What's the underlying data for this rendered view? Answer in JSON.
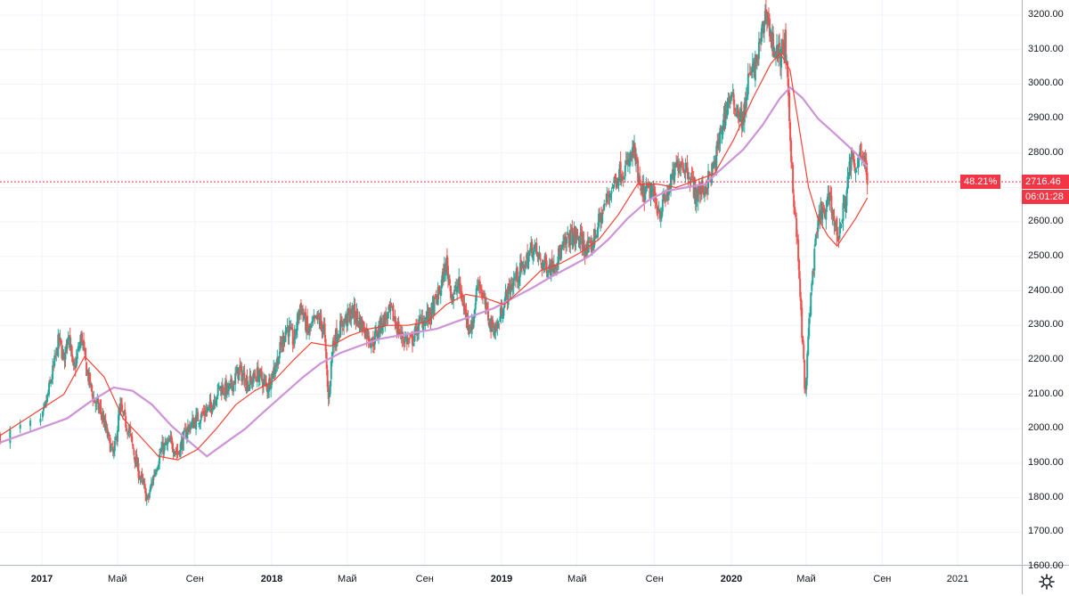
{
  "chart_data": {
    "type": "candlestick",
    "price_axis": {
      "ticks": [
        "3200.00",
        "3100.00",
        "3000.00",
        "2900.00",
        "2800.00",
        "2700.00",
        "2600.00",
        "2500.00",
        "2400.00",
        "2300.00",
        "2200.00",
        "2100.00",
        "2000.00",
        "1900.00",
        "1800.00",
        "1700.00",
        "1600.00"
      ],
      "range": [
        1600,
        3230
      ]
    },
    "time_axis": {
      "labels": [
        "2017",
        "Май",
        "Сен",
        "2018",
        "Май",
        "Сен",
        "2019",
        "Май",
        "Сен",
        "2020",
        "Май",
        "Сен",
        "2021"
      ],
      "bold": [
        true,
        false,
        false,
        true,
        false,
        false,
        true,
        false,
        false,
        true,
        false,
        false,
        false
      ]
    },
    "last_price": "2716.46",
    "percent_badge": "48.21%",
    "countdown": "06:01:28",
    "last_value": 2716.46,
    "close_path": [
      {
        "d": "2016-12-26",
        "v": 1980
      },
      {
        "d": "2017-01-05",
        "v": 2050
      },
      {
        "d": "2017-01-20",
        "v": 2180
      },
      {
        "d": "2017-01-28",
        "v": 2260
      },
      {
        "d": "2017-02-05",
        "v": 2200
      },
      {
        "d": "2017-02-12",
        "v": 2290
      },
      {
        "d": "2017-02-20",
        "v": 2160
      },
      {
        "d": "2017-03-05",
        "v": 2270
      },
      {
        "d": "2017-03-12",
        "v": 2180
      },
      {
        "d": "2017-03-25",
        "v": 2080
      },
      {
        "d": "2017-04-05",
        "v": 2050
      },
      {
        "d": "2017-04-12",
        "v": 2000
      },
      {
        "d": "2017-04-25",
        "v": 1920
      },
      {
        "d": "2017-05-05",
        "v": 2060
      },
      {
        "d": "2017-05-20",
        "v": 1990
      },
      {
        "d": "2017-06-01",
        "v": 1890
      },
      {
        "d": "2017-06-10",
        "v": 1840
      },
      {
        "d": "2017-06-18",
        "v": 1790
      },
      {
        "d": "2017-06-28",
        "v": 1870
      },
      {
        "d": "2017-07-10",
        "v": 1940
      },
      {
        "d": "2017-07-25",
        "v": 1960
      },
      {
        "d": "2017-08-05",
        "v": 1930
      },
      {
        "d": "2017-08-20",
        "v": 2000
      },
      {
        "d": "2017-09-05",
        "v": 2030
      },
      {
        "d": "2017-09-25",
        "v": 2060
      },
      {
        "d": "2017-10-10",
        "v": 2120
      },
      {
        "d": "2017-10-25",
        "v": 2110
      },
      {
        "d": "2017-11-10",
        "v": 2170
      },
      {
        "d": "2017-11-25",
        "v": 2130
      },
      {
        "d": "2017-12-10",
        "v": 2160
      },
      {
        "d": "2017-12-25",
        "v": 2120
      },
      {
        "d": "2018-01-10",
        "v": 2200
      },
      {
        "d": "2018-01-25",
        "v": 2300
      },
      {
        "d": "2018-02-05",
        "v": 2250
      },
      {
        "d": "2018-02-15",
        "v": 2360
      },
      {
        "d": "2018-02-28",
        "v": 2280
      },
      {
        "d": "2018-03-15",
        "v": 2320
      },
      {
        "d": "2018-03-25",
        "v": 2290
      },
      {
        "d": "2018-04-01",
        "v": 2080
      },
      {
        "d": "2018-04-08",
        "v": 2250
      },
      {
        "d": "2018-04-25",
        "v": 2310
      },
      {
        "d": "2018-05-10",
        "v": 2340
      },
      {
        "d": "2018-05-25",
        "v": 2300
      },
      {
        "d": "2018-06-10",
        "v": 2250
      },
      {
        "d": "2018-06-25",
        "v": 2310
      },
      {
        "d": "2018-07-10",
        "v": 2340
      },
      {
        "d": "2018-07-25",
        "v": 2270
      },
      {
        "d": "2018-08-10",
        "v": 2250
      },
      {
        "d": "2018-08-25",
        "v": 2310
      },
      {
        "d": "2018-09-10",
        "v": 2330
      },
      {
        "d": "2018-09-25",
        "v": 2400
      },
      {
        "d": "2018-10-05",
        "v": 2480
      },
      {
        "d": "2018-10-15",
        "v": 2380
      },
      {
        "d": "2018-10-25",
        "v": 2420
      },
      {
        "d": "2018-11-05",
        "v": 2330
      },
      {
        "d": "2018-11-15",
        "v": 2290
      },
      {
        "d": "2018-11-25",
        "v": 2440
      },
      {
        "d": "2018-12-05",
        "v": 2360
      },
      {
        "d": "2018-12-15",
        "v": 2300
      },
      {
        "d": "2018-12-25",
        "v": 2290
      },
      {
        "d": "2019-01-05",
        "v": 2370
      },
      {
        "d": "2019-01-20",
        "v": 2430
      },
      {
        "d": "2019-02-05",
        "v": 2470
      },
      {
        "d": "2019-02-20",
        "v": 2530
      },
      {
        "d": "2019-03-05",
        "v": 2480
      },
      {
        "d": "2019-03-20",
        "v": 2470
      },
      {
        "d": "2019-04-05",
        "v": 2510
      },
      {
        "d": "2019-04-20",
        "v": 2560
      },
      {
        "d": "2019-05-05",
        "v": 2550
      },
      {
        "d": "2019-05-20",
        "v": 2510
      },
      {
        "d": "2019-06-05",
        "v": 2600
      },
      {
        "d": "2019-06-20",
        "v": 2680
      },
      {
        "d": "2019-07-05",
        "v": 2740
      },
      {
        "d": "2019-07-20",
        "v": 2760
      },
      {
        "d": "2019-07-30",
        "v": 2810
      },
      {
        "d": "2019-08-10",
        "v": 2680
      },
      {
        "d": "2019-08-25",
        "v": 2690
      },
      {
        "d": "2019-09-10",
        "v": 2630
      },
      {
        "d": "2019-09-25",
        "v": 2700
      },
      {
        "d": "2019-10-10",
        "v": 2780
      },
      {
        "d": "2019-10-25",
        "v": 2750
      },
      {
        "d": "2019-11-05",
        "v": 2680
      },
      {
        "d": "2019-11-20",
        "v": 2700
      },
      {
        "d": "2019-12-05",
        "v": 2760
      },
      {
        "d": "2019-12-15",
        "v": 2860
      },
      {
        "d": "2019-12-28",
        "v": 2960
      },
      {
        "d": "2020-01-10",
        "v": 2930
      },
      {
        "d": "2020-01-20",
        "v": 2890
      },
      {
        "d": "2020-01-28",
        "v": 3010
      },
      {
        "d": "2020-02-10",
        "v": 3060
      },
      {
        "d": "2020-02-20",
        "v": 3150
      },
      {
        "d": "2020-02-27",
        "v": 3220
      },
      {
        "d": "2020-03-05",
        "v": 3130
      },
      {
        "d": "2020-03-12",
        "v": 3100
      },
      {
        "d": "2020-03-20",
        "v": 3080
      },
      {
        "d": "2020-03-28",
        "v": 3120
      },
      {
        "d": "2020-04-05",
        "v": 2850
      },
      {
        "d": "2020-04-12",
        "v": 2640
      },
      {
        "d": "2020-04-18",
        "v": 2500
      },
      {
        "d": "2020-04-24",
        "v": 2280
      },
      {
        "d": "2020-04-30",
        "v": 2090
      },
      {
        "d": "2020-05-06",
        "v": 2330
      },
      {
        "d": "2020-05-12",
        "v": 2460
      },
      {
        "d": "2020-05-18",
        "v": 2560
      },
      {
        "d": "2020-05-25",
        "v": 2640
      },
      {
        "d": "2020-06-01",
        "v": 2610
      },
      {
        "d": "2020-06-08",
        "v": 2690
      },
      {
        "d": "2020-06-15",
        "v": 2600
      },
      {
        "d": "2020-06-22",
        "v": 2560
      },
      {
        "d": "2020-06-29",
        "v": 2620
      },
      {
        "d": "2020-07-06",
        "v": 2700
      },
      {
        "d": "2020-07-13",
        "v": 2790
      },
      {
        "d": "2020-07-20",
        "v": 2730
      },
      {
        "d": "2020-07-27",
        "v": 2820
      },
      {
        "d": "2020-08-03",
        "v": 2780
      },
      {
        "d": "2020-08-08",
        "v": 2716
      }
    ],
    "ma_fast": [
      {
        "d": "2016-12-26",
        "v": 1980
      },
      {
        "d": "2017-02-05",
        "v": 2100
      },
      {
        "d": "2017-03-10",
        "v": 2210
      },
      {
        "d": "2017-04-10",
        "v": 2150
      },
      {
        "d": "2017-05-10",
        "v": 2030
      },
      {
        "d": "2017-06-05",
        "v": 1980
      },
      {
        "d": "2017-07-05",
        "v": 1920
      },
      {
        "d": "2017-08-05",
        "v": 1910
      },
      {
        "d": "2017-09-05",
        "v": 1940
      },
      {
        "d": "2017-10-05",
        "v": 2000
      },
      {
        "d": "2017-11-05",
        "v": 2070
      },
      {
        "d": "2017-12-05",
        "v": 2110
      },
      {
        "d": "2018-01-05",
        "v": 2140
      },
      {
        "d": "2018-02-05",
        "v": 2200
      },
      {
        "d": "2018-03-05",
        "v": 2250
      },
      {
        "d": "2018-04-05",
        "v": 2240
      },
      {
        "d": "2018-05-05",
        "v": 2270
      },
      {
        "d": "2018-06-05",
        "v": 2290
      },
      {
        "d": "2018-07-05",
        "v": 2300
      },
      {
        "d": "2018-08-05",
        "v": 2300
      },
      {
        "d": "2018-09-05",
        "v": 2310
      },
      {
        "d": "2018-10-05",
        "v": 2360
      },
      {
        "d": "2018-11-05",
        "v": 2390
      },
      {
        "d": "2018-12-05",
        "v": 2380
      },
      {
        "d": "2019-01-05",
        "v": 2360
      },
      {
        "d": "2019-02-05",
        "v": 2410
      },
      {
        "d": "2019-03-05",
        "v": 2460
      },
      {
        "d": "2019-04-05",
        "v": 2480
      },
      {
        "d": "2019-05-05",
        "v": 2510
      },
      {
        "d": "2019-06-05",
        "v": 2550
      },
      {
        "d": "2019-07-05",
        "v": 2620
      },
      {
        "d": "2019-08-05",
        "v": 2710
      },
      {
        "d": "2019-09-05",
        "v": 2710
      },
      {
        "d": "2019-10-05",
        "v": 2700
      },
      {
        "d": "2019-11-05",
        "v": 2720
      },
      {
        "d": "2019-12-05",
        "v": 2740
      },
      {
        "d": "2020-01-05",
        "v": 2840
      },
      {
        "d": "2020-02-05",
        "v": 2960
      },
      {
        "d": "2020-03-05",
        "v": 3060
      },
      {
        "d": "2020-03-20",
        "v": 3090
      },
      {
        "d": "2020-04-05",
        "v": 3040
      },
      {
        "d": "2020-04-20",
        "v": 2870
      },
      {
        "d": "2020-05-05",
        "v": 2700
      },
      {
        "d": "2020-05-20",
        "v": 2610
      },
      {
        "d": "2020-06-05",
        "v": 2560
      },
      {
        "d": "2020-06-20",
        "v": 2530
      },
      {
        "d": "2020-07-05",
        "v": 2570
      },
      {
        "d": "2020-07-20",
        "v": 2610
      },
      {
        "d": "2020-08-08",
        "v": 2670
      }
    ],
    "ma_slow": [
      {
        "d": "2016-12-26",
        "v": 1960
      },
      {
        "d": "2017-02-10",
        "v": 2030
      },
      {
        "d": "2017-03-20",
        "v": 2080
      },
      {
        "d": "2017-04-25",
        "v": 2120
      },
      {
        "d": "2017-05-25",
        "v": 2110
      },
      {
        "d": "2017-06-25",
        "v": 2070
      },
      {
        "d": "2017-07-25",
        "v": 2010
      },
      {
        "d": "2017-08-25",
        "v": 1960
      },
      {
        "d": "2017-09-20",
        "v": 1920
      },
      {
        "d": "2017-10-20",
        "v": 1960
      },
      {
        "d": "2017-11-20",
        "v": 2000
      },
      {
        "d": "2017-12-20",
        "v": 2050
      },
      {
        "d": "2018-01-20",
        "v": 2100
      },
      {
        "d": "2018-02-20",
        "v": 2150
      },
      {
        "d": "2018-03-20",
        "v": 2190
      },
      {
        "d": "2018-04-20",
        "v": 2220
      },
      {
        "d": "2018-05-20",
        "v": 2240
      },
      {
        "d": "2018-06-20",
        "v": 2260
      },
      {
        "d": "2018-07-20",
        "v": 2270
      },
      {
        "d": "2018-08-20",
        "v": 2280
      },
      {
        "d": "2018-09-20",
        "v": 2290
      },
      {
        "d": "2018-10-20",
        "v": 2310
      },
      {
        "d": "2018-11-20",
        "v": 2330
      },
      {
        "d": "2018-12-20",
        "v": 2350
      },
      {
        "d": "2019-01-20",
        "v": 2380
      },
      {
        "d": "2019-02-20",
        "v": 2410
      },
      {
        "d": "2019-03-20",
        "v": 2440
      },
      {
        "d": "2019-04-20",
        "v": 2470
      },
      {
        "d": "2019-05-20",
        "v": 2500
      },
      {
        "d": "2019-06-20",
        "v": 2550
      },
      {
        "d": "2019-07-20",
        "v": 2610
      },
      {
        "d": "2019-08-20",
        "v": 2660
      },
      {
        "d": "2019-09-20",
        "v": 2690
      },
      {
        "d": "2019-10-20",
        "v": 2700
      },
      {
        "d": "2019-11-20",
        "v": 2710
      },
      {
        "d": "2019-12-20",
        "v": 2760
      },
      {
        "d": "2020-01-20",
        "v": 2810
      },
      {
        "d": "2020-02-20",
        "v": 2880
      },
      {
        "d": "2020-03-20",
        "v": 2960
      },
      {
        "d": "2020-04-05",
        "v": 2990
      },
      {
        "d": "2020-04-25",
        "v": 2960
      },
      {
        "d": "2020-05-20",
        "v": 2900
      },
      {
        "d": "2020-06-20",
        "v": 2850
      },
      {
        "d": "2020-07-20",
        "v": 2800
      },
      {
        "d": "2020-08-08",
        "v": 2760
      }
    ]
  },
  "colors": {
    "up": "#26a69a",
    "down": "#ef5350",
    "ma_fast": "#f44336",
    "ma_slow": "#ce93d8",
    "grid": "#f0f3fa",
    "price_line": "#f23645",
    "badge": "#f23645",
    "text": "#131722",
    "axis": "#b2b5be"
  },
  "icons": {
    "settings": "gear-icon"
  }
}
